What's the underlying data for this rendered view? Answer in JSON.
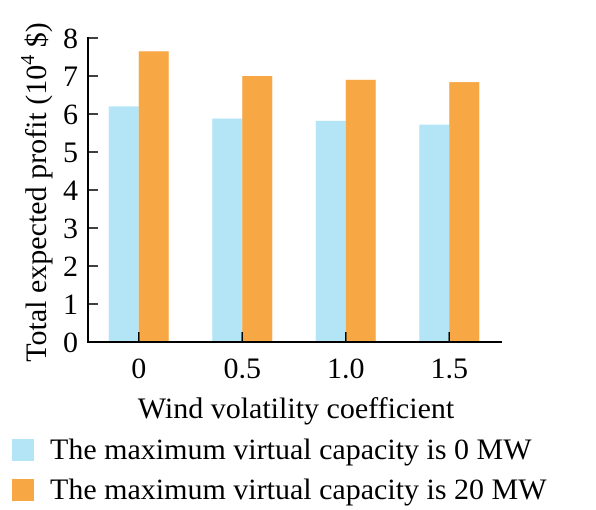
{
  "chart_data": {
    "type": "bar",
    "xlabel": "Wind volatility coefficient",
    "ylabel": "Total expected profit (10",
    "ylabel_sup": "4",
    "ylabel_tail": " $)",
    "categories": [
      "0",
      "0.5",
      "1.0",
      "1.5"
    ],
    "ylim": [
      0,
      8
    ],
    "yticks": [
      "0",
      "1",
      "2",
      "3",
      "4",
      "5",
      "6",
      "7",
      "8"
    ],
    "grid": false,
    "legend_position": "bottom",
    "series": [
      {
        "name": "The maximum virtual capacity is 0 MW",
        "color": "#b3e5f7",
        "values": [
          6.2,
          5.88,
          5.82,
          5.72
        ]
      },
      {
        "name": "The maximum virtual capacity is 20 MW",
        "color": "#f7a845",
        "values": [
          7.65,
          7.0,
          6.9,
          6.84
        ]
      }
    ]
  }
}
